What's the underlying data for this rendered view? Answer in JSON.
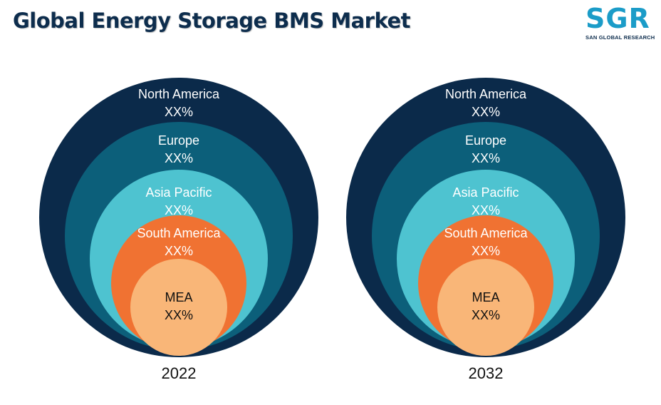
{
  "title": "Global Energy Storage BMS Market",
  "logo": {
    "mark": "SGR",
    "subtitle": "SAN GLOBAL RESEARCH",
    "mark_color": "#1b9cc8"
  },
  "chart_data": [
    {
      "type": "nested-circles",
      "year": "2022",
      "segments": [
        {
          "name": "North America",
          "value": "XX%",
          "color": "#0b2a4a",
          "text_color": "#ffffff"
        },
        {
          "name": "Europe",
          "value": "XX%",
          "color": "#0c5f7a",
          "text_color": "#ffffff"
        },
        {
          "name": "Asia Pacific",
          "value": "XX%",
          "color": "#4ec3d0",
          "text_color": "#ffffff"
        },
        {
          "name": "South America",
          "value": "XX%",
          "color": "#f07232",
          "text_color": "#ffffff"
        },
        {
          "name": "MEA",
          "value": "XX%",
          "color": "#f9b678",
          "text_color": "#111111"
        }
      ]
    },
    {
      "type": "nested-circles",
      "year": "2032",
      "segments": [
        {
          "name": "North America",
          "value": "XX%",
          "color": "#0b2a4a",
          "text_color": "#ffffff"
        },
        {
          "name": "Europe",
          "value": "XX%",
          "color": "#0c5f7a",
          "text_color": "#ffffff"
        },
        {
          "name": "Asia Pacific",
          "value": "XX%",
          "color": "#4ec3d0",
          "text_color": "#ffffff"
        },
        {
          "name": "South America",
          "value": "XX%",
          "color": "#f07232",
          "text_color": "#ffffff"
        },
        {
          "name": "MEA",
          "value": "XX%",
          "color": "#f9b678",
          "text_color": "#111111"
        }
      ]
    }
  ]
}
